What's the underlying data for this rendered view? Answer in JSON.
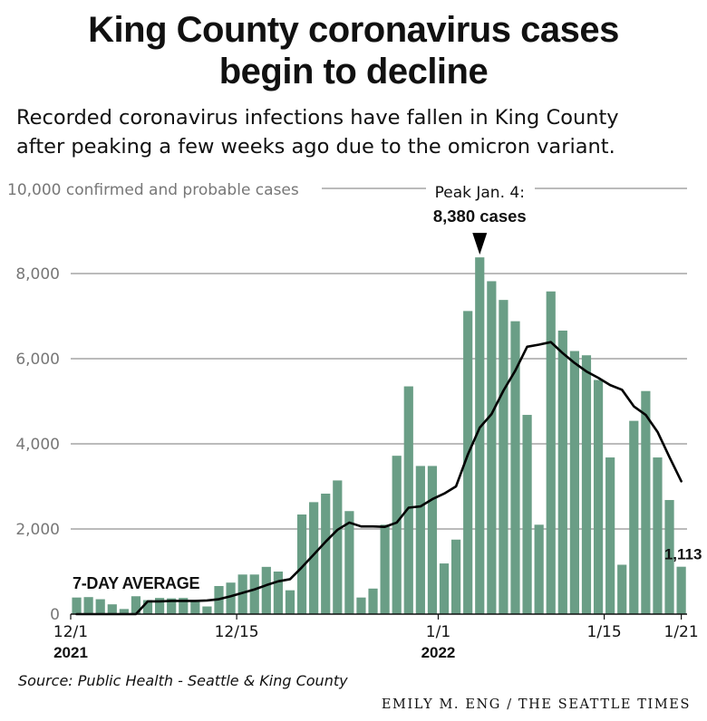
{
  "title": {
    "line1": "King County coronavirus cases",
    "line2": "begin to decline"
  },
  "subtitle": {
    "line1": "Recorded coronavirus infections have fallen in King County",
    "line2": "after peaking a few weeks ago due to the omicron variant."
  },
  "source": "Source: Public Health - Seattle & King County",
  "credit": "EMILY M. ENG / THE SEATTLE TIMES",
  "colors": {
    "bar": "#6a9e86",
    "line": "#000000",
    "grid": "#777777",
    "axis_text": "#777777"
  },
  "chart_data": {
    "type": "bar",
    "ylim": [
      0,
      10000
    ],
    "y_ticks": [
      {
        "value": 0,
        "label": "0"
      },
      {
        "value": 2000,
        "label": "2,000"
      },
      {
        "value": 4000,
        "label": "4,000"
      },
      {
        "value": 6000,
        "label": "6,000"
      },
      {
        "value": 8000,
        "label": "8,000"
      },
      {
        "value": 10000,
        "label": "10,000"
      }
    ],
    "y_unit_label": "confirmed and probable cases",
    "x_ticks": [
      {
        "date": "2021-12-01",
        "label": "12/1",
        "year": "2021"
      },
      {
        "date": "2021-12-15",
        "label": "12/15",
        "year": ""
      },
      {
        "date": "2022-01-01",
        "label": "1/1",
        "year": "2022"
      },
      {
        "date": "2022-01-15",
        "label": "1/15",
        "year": ""
      },
      {
        "date": "2022-01-21",
        "label": "1/21",
        "year": ""
      }
    ],
    "dates": [
      "2021-12-01",
      "2021-12-02",
      "2021-12-03",
      "2021-12-04",
      "2021-12-05",
      "2021-12-06",
      "2021-12-07",
      "2021-12-08",
      "2021-12-09",
      "2021-12-10",
      "2021-12-11",
      "2021-12-12",
      "2021-12-13",
      "2021-12-14",
      "2021-12-15",
      "2021-12-16",
      "2021-12-17",
      "2021-12-18",
      "2021-12-19",
      "2021-12-20",
      "2021-12-21",
      "2021-12-22",
      "2021-12-23",
      "2021-12-24",
      "2021-12-25",
      "2021-12-26",
      "2021-12-27",
      "2021-12-28",
      "2021-12-29",
      "2021-12-30",
      "2021-12-31",
      "2022-01-01",
      "2022-01-02",
      "2022-01-03",
      "2022-01-04",
      "2022-01-05",
      "2022-01-06",
      "2022-01-07",
      "2022-01-08",
      "2022-01-09",
      "2022-01-10",
      "2022-01-11",
      "2022-01-12",
      "2022-01-13",
      "2022-01-14",
      "2022-01-15",
      "2022-01-16",
      "2022-01-17",
      "2022-01-18",
      "2022-01-19",
      "2022-01-20",
      "2022-01-21"
    ],
    "series": [
      {
        "type": "bar",
        "values": [
          390,
          400,
          350,
          230,
          120,
          420,
          330,
          380,
          370,
          380,
          330,
          180,
          660,
          740,
          930,
          930,
          1110,
          1000,
          560,
          2340,
          2630,
          2830,
          3140,
          2420,
          390,
          600,
          2100,
          3720,
          5350,
          3480,
          3480,
          1190,
          1750,
          7120,
          8380,
          7820,
          7380,
          6880,
          4680,
          2100,
          7580,
          6660,
          6180,
          6080,
          5500,
          3680,
          1160,
          4540,
          5240,
          3680,
          2680,
          1113
        ]
      },
      {
        "type": "line",
        "name": "7-DAY AVERAGE",
        "values": [
          0,
          0,
          0,
          0,
          0,
          0,
          300,
          300,
          310,
          310,
          310,
          320,
          350,
          420,
          500,
          580,
          680,
          770,
          820,
          1100,
          1400,
          1700,
          1980,
          2150,
          2060,
          2060,
          2050,
          2150,
          2500,
          2530,
          2700,
          2830,
          3000,
          3750,
          4380,
          4700,
          5250,
          5720,
          6280,
          6330,
          6390,
          6130,
          5900,
          5700,
          5550,
          5380,
          5270,
          4880,
          4680,
          4280,
          3690,
          3120
        ]
      }
    ],
    "annotations": [
      {
        "date": "2022-01-04",
        "line1": "Peak Jan. 4:",
        "line2": "8,380 cases"
      },
      {
        "date": "2022-01-21",
        "text": "1,113"
      }
    ]
  }
}
